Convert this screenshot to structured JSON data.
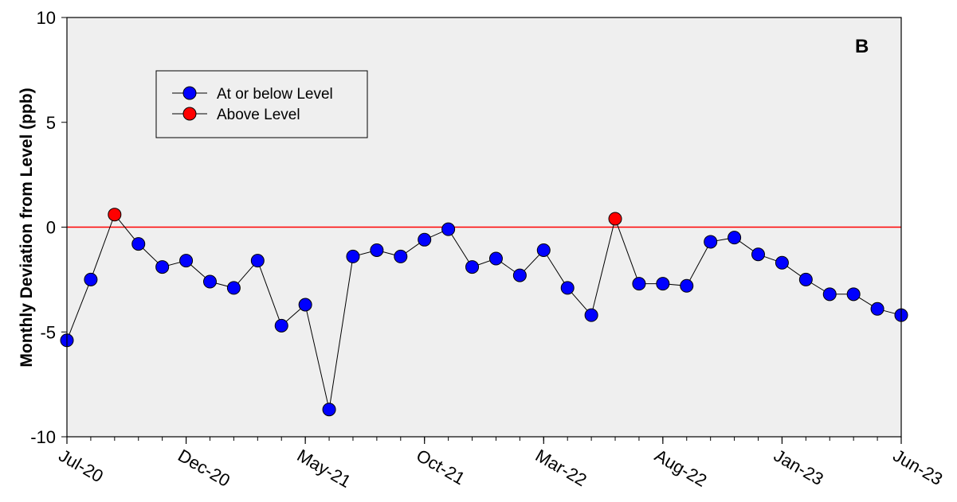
{
  "chart_data": {
    "type": "line",
    "panel_label": "B",
    "ylabel": "Monthly Deviation from Level (ppb)",
    "xlabel": "",
    "ylim": [
      -10,
      10
    ],
    "yticks": [
      10,
      5,
      0,
      -5,
      -10
    ],
    "xlim": [
      "2020-07",
      "2023-06"
    ],
    "xticks": [
      "Jul-20",
      "Dec-20",
      "May-21",
      "Oct-21",
      "Mar-22",
      "Aug-22",
      "Jan-23",
      "Jun-23"
    ],
    "grid": false,
    "background_color": "#efefef",
    "reference_line": {
      "y": 0,
      "color": "#ff0000"
    },
    "legend": {
      "placement": "top-left",
      "entries": [
        {
          "label": "At or below Level",
          "color": "#0000ff"
        },
        {
          "label": "Above Level",
          "color": "#ff0000"
        }
      ]
    },
    "series": [
      {
        "x": [
          "2020-07",
          "2020-08",
          "2020-09",
          "2020-10",
          "2020-11",
          "2020-12",
          "2021-01",
          "2021-02",
          "2021-03",
          "2021-04",
          "2021-05",
          "2021-06",
          "2021-07",
          "2021-08",
          "2021-09",
          "2021-10",
          "2021-11",
          "2021-12",
          "2022-01",
          "2022-02",
          "2022-03",
          "2022-04",
          "2022-05",
          "2022-06",
          "2022-07",
          "2022-08",
          "2022-09",
          "2022-10",
          "2022-11",
          "2022-12",
          "2023-01",
          "2023-02",
          "2023-03",
          "2023-04",
          "2023-05",
          "2023-06"
        ],
        "values": [
          -5.4,
          -2.5,
          0.6,
          -0.8,
          -1.9,
          -1.6,
          -2.6,
          -2.9,
          -1.6,
          -4.7,
          -3.7,
          -8.7,
          -1.4,
          -1.1,
          -1.4,
          -0.6,
          -0.1,
          -1.9,
          -1.5,
          -2.3,
          -1.1,
          -2.9,
          -4.2,
          0.4,
          -2.7,
          -2.7,
          -2.8,
          -0.7,
          -0.5,
          -1.3,
          -1.7,
          -2.5,
          -3.2,
          -3.2,
          -3.9,
          -4.2
        ]
      }
    ]
  }
}
